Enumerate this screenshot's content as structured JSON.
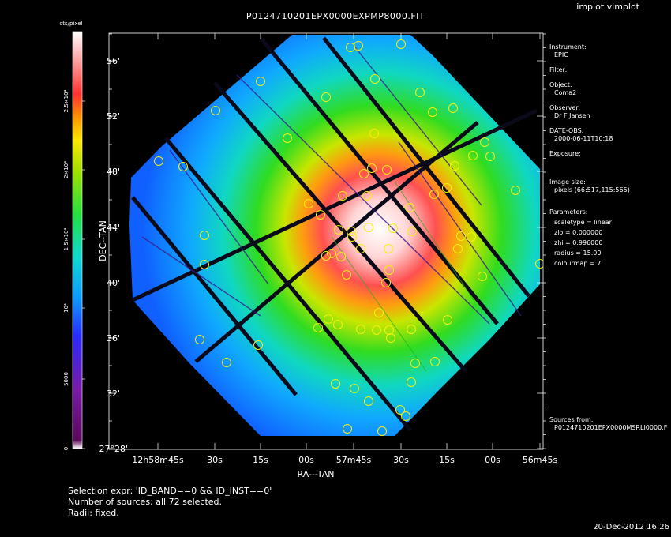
{
  "window": {
    "title": "implot vimplot"
  },
  "plot": {
    "title": "P0124710201EPX0000EXPMP8000.FIT"
  },
  "colorbar": {
    "label": "cts/pixel",
    "ticks": [
      "0",
      "5000",
      "10⁴",
      "1.5×10⁴",
      "2×10⁴",
      "2.5×10⁴"
    ],
    "colormap": 7
  },
  "chart_data": {
    "type": "heatmap",
    "title": "P0124710201EPX0000EXPMP8000.FIT",
    "xlabel": "RA---TAN",
    "ylabel": "DEC--TAN",
    "x_ticks": [
      "12h58m45s",
      "30s",
      "15s",
      "00s",
      "57m45s",
      "30s",
      "15s",
      "00s",
      "56m45s"
    ],
    "y_ticks": [
      "27°28'",
      "32'",
      "36'",
      "40'",
      "44'",
      "48'",
      "52'",
      "56'"
    ],
    "colorbar_ticks": [
      "0",
      "5000",
      "10⁴",
      "1.5×10⁴",
      "2×10⁴",
      "2.5×10⁴"
    ],
    "colorbar_label": "cts/pixel",
    "grid": false,
    "sources_shown": 72
  },
  "info": {
    "instrument_label": "Instrument:",
    "instrument": "EPIC",
    "filter_label": "Filter:",
    "object_label": "Object:",
    "object": "Coma2",
    "observer_label": "Observer:",
    "observer": "Dr F Jansen",
    "dateobs_label": "DATE-OBS:",
    "dateobs": "2000-06-11T10:18",
    "exposure_label": "Exposure:",
    "imagesize_label": "Image size:",
    "imagesize": "pixels (66:517,115:565)",
    "params_label": "Parameters:",
    "p_scale": "scaletype = linear",
    "p_zlo": "zlo = 0.000000",
    "p_zhi": "zhi = 0.996000",
    "p_radius": "radius = 15.00",
    "p_cmap": "colourmap = 7",
    "sources_label": "Sources from:",
    "sources_file": "P0124710201EPX0000MSRLI0000.F"
  },
  "footer": {
    "selection": "Selection expr: 'ID_BAND==0 && ID_INST==0'",
    "nsources": "Number of sources: all 72 selected.",
    "radii": "Radii: fixed.",
    "timestamp": "20-Dec-2012 16:26"
  }
}
